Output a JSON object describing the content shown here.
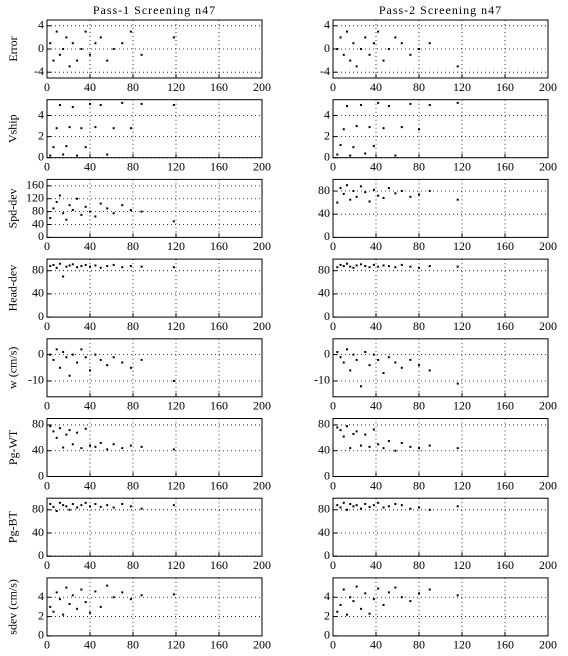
{
  "chart_data": [
    {
      "type": "scatter",
      "title": "Pass-1 Screening n47",
      "ylabel": "Error",
      "xlim": [
        0,
        200
      ],
      "xticks": [
        0,
        40,
        80,
        120,
        160,
        200
      ],
      "ylim": [
        -5,
        5
      ],
      "yticks": [
        -4,
        0,
        4
      ],
      "grid": true,
      "color": "#000000",
      "x": [
        3,
        6,
        9,
        12,
        15,
        18,
        21,
        24,
        28,
        32,
        36,
        40,
        45,
        50,
        56,
        62,
        70,
        78,
        88,
        118
      ],
      "y": [
        1,
        -2,
        3,
        -1,
        0,
        2,
        -3,
        1,
        -2,
        0,
        3,
        -1,
        1,
        2,
        -2,
        0,
        1,
        3,
        -1,
        2
      ]
    },
    {
      "type": "scatter",
      "title": "Pass-2 Screening n47",
      "xlim": [
        0,
        200
      ],
      "xticks": [
        0,
        40,
        80,
        120,
        160,
        200
      ],
      "ylim": [
        -5,
        5
      ],
      "yticks": [
        -4,
        0,
        4
      ],
      "grid": true,
      "color": "#000000",
      "x": [
        4,
        7,
        10,
        13,
        16,
        19,
        22,
        26,
        30,
        34,
        38,
        42,
        47,
        52,
        58,
        64,
        72,
        80,
        90,
        116
      ],
      "y": [
        0,
        2,
        -1,
        3,
        -2,
        1,
        -3,
        0,
        2,
        -1,
        1,
        3,
        -2,
        0,
        2,
        1,
        -1,
        0,
        1,
        -3
      ]
    },
    {
      "type": "scatter",
      "ylabel": "Vship",
      "xlim": [
        0,
        200
      ],
      "xticks": [
        0,
        40,
        80,
        120,
        160,
        200
      ],
      "ylim": [
        0,
        5.5
      ],
      "yticks": [
        0,
        2,
        4
      ],
      "grid": true,
      "color": "#000000",
      "x": [
        3,
        6,
        9,
        12,
        15,
        18,
        21,
        24,
        28,
        32,
        36,
        40,
        45,
        50,
        56,
        62,
        70,
        78,
        88,
        118
      ],
      "y": [
        0.2,
        1,
        2.8,
        5,
        0.3,
        1.1,
        2.9,
        4.8,
        0.2,
        2.8,
        1,
        5.1,
        2.9,
        5,
        0.3,
        2.8,
        5.2,
        2.8,
        5.1,
        5
      ]
    },
    {
      "type": "scatter",
      "xlim": [
        0,
        200
      ],
      "xticks": [
        0,
        40,
        80,
        120,
        160,
        200
      ],
      "ylim": [
        0,
        5.5
      ],
      "yticks": [
        0,
        2,
        4
      ],
      "grid": true,
      "color": "#000000",
      "x": [
        4,
        7,
        10,
        13,
        16,
        19,
        22,
        26,
        30,
        34,
        38,
        42,
        47,
        52,
        58,
        64,
        72,
        80,
        90,
        116
      ],
      "y": [
        0.3,
        1.2,
        2.7,
        4.9,
        0.2,
        1,
        3,
        5,
        0.4,
        2.9,
        1.1,
        5.2,
        2.8,
        4.9,
        0.2,
        2.9,
        5.1,
        2.7,
        5,
        5.2
      ]
    },
    {
      "type": "scatter",
      "ylabel": "Spd-dev",
      "xlim": [
        0,
        200
      ],
      "xticks": [
        0,
        40,
        80,
        120,
        160,
        200
      ],
      "ylim": [
        0,
        180
      ],
      "yticks": [
        0,
        40,
        80,
        120,
        160
      ],
      "grid": true,
      "color": "#000000",
      "x": [
        3,
        6,
        9,
        12,
        15,
        18,
        21,
        24,
        28,
        32,
        36,
        40,
        45,
        50,
        56,
        62,
        70,
        78,
        88,
        118
      ],
      "y": [
        60,
        90,
        110,
        130,
        75,
        55,
        100,
        85,
        120,
        70,
        95,
        80,
        65,
        105,
        90,
        75,
        100,
        85,
        80,
        50
      ]
    },
    {
      "type": "scatter",
      "xlim": [
        0,
        200
      ],
      "xticks": [
        0,
        40,
        80,
        120,
        160,
        200
      ],
      "ylim": [
        0,
        100
      ],
      "yticks": [
        0,
        40,
        80
      ],
      "grid": true,
      "color": "#000000",
      "x": [
        4,
        7,
        10,
        13,
        16,
        19,
        22,
        26,
        30,
        34,
        38,
        42,
        47,
        52,
        58,
        64,
        72,
        80,
        90,
        116
      ],
      "y": [
        60,
        85,
        75,
        90,
        65,
        80,
        70,
        88,
        78,
        62,
        82,
        72,
        68,
        85,
        76,
        80,
        70,
        74,
        80,
        65
      ]
    },
    {
      "type": "scatter",
      "ylabel": "Head-dev",
      "xlim": [
        0,
        200
      ],
      "xticks": [
        0,
        40,
        80,
        120,
        160,
        200
      ],
      "ylim": [
        0,
        100
      ],
      "yticks": [
        0,
        40,
        80
      ],
      "grid": true,
      "color": "#000000",
      "x": [
        3,
        6,
        9,
        12,
        15,
        18,
        21,
        24,
        28,
        32,
        36,
        40,
        45,
        50,
        56,
        62,
        70,
        78,
        88,
        118
      ],
      "y": [
        88,
        90,
        85,
        92,
        70,
        87,
        89,
        91,
        86,
        88,
        90,
        87,
        89,
        85,
        88,
        90,
        86,
        88,
        87,
        86
      ]
    },
    {
      "type": "scatter",
      "xlim": [
        0,
        200
      ],
      "xticks": [
        0,
        40,
        80,
        120,
        160,
        200
      ],
      "ylim": [
        0,
        100
      ],
      "yticks": [
        0,
        40,
        80
      ],
      "grid": true,
      "color": "#000000",
      "x": [
        4,
        7,
        10,
        13,
        16,
        19,
        22,
        26,
        30,
        34,
        38,
        42,
        47,
        52,
        58,
        64,
        72,
        80,
        90,
        116
      ],
      "y": [
        86,
        90,
        88,
        92,
        87,
        85,
        89,
        91,
        88,
        86,
        90,
        87,
        89,
        88,
        86,
        90,
        87,
        85,
        88,
        87
      ]
    },
    {
      "type": "scatter",
      "ylabel": "w (cm/s)",
      "xlim": [
        0,
        200
      ],
      "xticks": [
        0,
        40,
        80,
        120,
        160,
        200
      ],
      "ylim": [
        -16,
        6
      ],
      "yticks": [
        -10,
        0
      ],
      "grid": true,
      "color": "#000000",
      "x": [
        3,
        6,
        9,
        12,
        15,
        18,
        21,
        24,
        28,
        32,
        36,
        40,
        45,
        50,
        56,
        62,
        70,
        78,
        88,
        118
      ],
      "y": [
        0,
        -2,
        2,
        -5,
        1,
        -1,
        -8,
        0,
        -3,
        2,
        -1,
        -6,
        0,
        -2,
        -4,
        -1,
        -3,
        -5,
        -2,
        -10
      ]
    },
    {
      "type": "scatter",
      "xlim": [
        0,
        200
      ],
      "xticks": [
        0,
        40,
        80,
        120,
        160,
        200
      ],
      "ylim": [
        -16,
        6
      ],
      "yticks": [
        -10,
        0
      ],
      "grid": true,
      "color": "#000000",
      "x": [
        4,
        7,
        10,
        13,
        16,
        19,
        22,
        26,
        30,
        34,
        38,
        42,
        47,
        52,
        58,
        64,
        72,
        80,
        90,
        116
      ],
      "y": [
        1,
        -1,
        -3,
        2,
        -6,
        0,
        -2,
        -12,
        1,
        -4,
        0,
        -2,
        -7,
        -1,
        -3,
        -5,
        -2,
        -4,
        -6,
        -11
      ]
    },
    {
      "type": "scatter",
      "ylabel": "Pg-WT",
      "xlim": [
        0,
        200
      ],
      "xticks": [
        0,
        40,
        80,
        120,
        160,
        200
      ],
      "ylim": [
        0,
        90
      ],
      "yticks": [
        0,
        40,
        80
      ],
      "grid": true,
      "color": "#000000",
      "x": [
        3,
        6,
        9,
        12,
        15,
        18,
        21,
        24,
        28,
        32,
        36,
        40,
        45,
        50,
        56,
        62,
        70,
        78,
        88,
        118
      ],
      "y": [
        78,
        70,
        60,
        75,
        45,
        65,
        72,
        50,
        68,
        44,
        74,
        48,
        46,
        52,
        42,
        50,
        44,
        48,
        46,
        42
      ]
    },
    {
      "type": "scatter",
      "xlim": [
        0,
        200
      ],
      "xticks": [
        0,
        40,
        80,
        120,
        160,
        200
      ],
      "ylim": [
        0,
        90
      ],
      "yticks": [
        0,
        40,
        80
      ],
      "grid": true,
      "color": "#000000",
      "x": [
        4,
        7,
        10,
        13,
        16,
        19,
        22,
        26,
        30,
        34,
        38,
        42,
        47,
        52,
        58,
        64,
        72,
        80,
        90,
        116
      ],
      "y": [
        76,
        72,
        62,
        78,
        44,
        66,
        70,
        48,
        65,
        46,
        73,
        50,
        44,
        55,
        40,
        52,
        46,
        44,
        48,
        44
      ]
    },
    {
      "type": "scatter",
      "ylabel": "Pg-BT",
      "xlim": [
        0,
        200
      ],
      "xticks": [
        0,
        40,
        80,
        120,
        160,
        200
      ],
      "ylim": [
        0,
        100
      ],
      "yticks": [
        0,
        40,
        80
      ],
      "grid": true,
      "color": "#000000",
      "x": [
        3,
        6,
        9,
        12,
        15,
        18,
        21,
        24,
        28,
        32,
        36,
        40,
        45,
        50,
        56,
        62,
        70,
        78,
        88,
        118
      ],
      "y": [
        90,
        85,
        78,
        92,
        88,
        86,
        80,
        90,
        84,
        88,
        92,
        86,
        90,
        85,
        88,
        84,
        90,
        86,
        82,
        88
      ]
    },
    {
      "type": "scatter",
      "xlim": [
        0,
        200
      ],
      "xticks": [
        0,
        40,
        80,
        120,
        160,
        200
      ],
      "ylim": [
        0,
        100
      ],
      "yticks": [
        0,
        40,
        80
      ],
      "grid": true,
      "color": "#000000",
      "x": [
        4,
        7,
        10,
        13,
        16,
        19,
        22,
        26,
        30,
        34,
        38,
        42,
        47,
        52,
        58,
        64,
        72,
        80,
        90,
        116
      ],
      "y": [
        88,
        84,
        92,
        80,
        90,
        86,
        88,
        82,
        90,
        85,
        88,
        92,
        84,
        86,
        90,
        88,
        82,
        84,
        80,
        86
      ]
    },
    {
      "type": "scatter",
      "ylabel": "sdev (cm/s)",
      "xlim": [
        0,
        200
      ],
      "xticks": [
        0,
        40,
        80,
        120,
        160,
        200
      ],
      "ylim": [
        0,
        6
      ],
      "yticks": [
        0,
        2,
        4
      ],
      "grid": true,
      "color": "#000000",
      "x": [
        3,
        6,
        9,
        12,
        15,
        18,
        21,
        24,
        28,
        32,
        36,
        40,
        45,
        50,
        56,
        62,
        70,
        78,
        88,
        118
      ],
      "y": [
        3,
        2.5,
        4.5,
        3.8,
        2.2,
        5,
        3.3,
        4.2,
        2.8,
        4.8,
        3.5,
        2.4,
        4.6,
        3,
        5.2,
        4,
        4.5,
        3.8,
        4.2,
        4.3
      ]
    },
    {
      "type": "scatter",
      "xlim": [
        0,
        200
      ],
      "xticks": [
        0,
        40,
        80,
        120,
        160,
        200
      ],
      "ylim": [
        0,
        6
      ],
      "yticks": [
        0,
        2,
        4
      ],
      "grid": true,
      "color": "#000000",
      "x": [
        4,
        7,
        10,
        13,
        16,
        19,
        22,
        26,
        30,
        34,
        38,
        42,
        47,
        52,
        58,
        64,
        72,
        80,
        90,
        116
      ],
      "y": [
        2.5,
        3.2,
        4.8,
        2.2,
        4,
        3.6,
        5.1,
        2.8,
        4.4,
        2.3,
        3.8,
        4.9,
        3.2,
        4.5,
        5,
        4,
        3.6,
        4.4,
        4.8,
        4.2
      ]
    }
  ]
}
